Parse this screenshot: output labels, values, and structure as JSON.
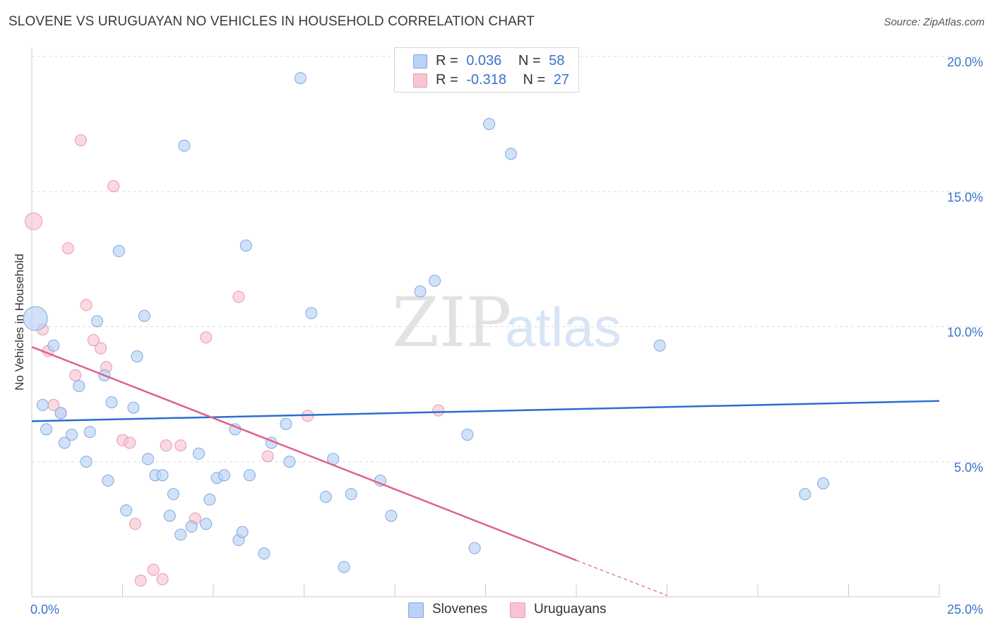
{
  "header": {
    "title": "SLOVENE VS URUGUAYAN NO VEHICLES IN HOUSEHOLD CORRELATION CHART",
    "source": "Source: ZipAtlas.com"
  },
  "legend": {
    "r_label": "R =",
    "n_label": "N =",
    "series": [
      {
        "name": "Slovenes",
        "r": "0.036",
        "n": "58"
      },
      {
        "name": "Uruguayans",
        "r": "-0.318",
        "n": "27"
      }
    ]
  },
  "watermark": {
    "zip": "ZIP",
    "atlas": "atlas"
  },
  "colors": {
    "blue_fill": "#b9d3f5",
    "blue_stroke": "#7fa8e0",
    "blue_line": "#2b6fcf",
    "pink_fill": "#f8c4d4",
    "pink_stroke": "#e898b1",
    "pink_line": "#e0608f",
    "axis_text": "#3a73c8",
    "grid": "#dddddd"
  },
  "chart_data": {
    "type": "scatter",
    "title": "SLOVENE VS URUGUAYAN NO VEHICLES IN HOUSEHOLD CORRELATION CHART",
    "xlabel": "",
    "ylabel": "No Vehicles in Household",
    "xlim": [
      0,
      25
    ],
    "ylim": [
      0,
      20
    ],
    "x_tick_labels": [
      "0.0%",
      "25.0%"
    ],
    "y_ticks": [
      5,
      10,
      15,
      20
    ],
    "y_tick_labels": [
      "5.0%",
      "10.0%",
      "15.0%",
      "20.0%"
    ],
    "grid": true,
    "series": [
      {
        "name": "Slovenes",
        "r": 0.036,
        "n": 58,
        "trend": {
          "x0": 0,
          "y0": 6.5,
          "x1": 25,
          "y1": 7.25
        },
        "points": [
          [
            0.1,
            10.3,
            3
          ],
          [
            0.3,
            7.1,
            1
          ],
          [
            0.4,
            6.2,
            1
          ],
          [
            0.6,
            9.3,
            1
          ],
          [
            0.8,
            6.8,
            1
          ],
          [
            0.9,
            5.7,
            1
          ],
          [
            1.1,
            6.0,
            1
          ],
          [
            1.3,
            7.8,
            1
          ],
          [
            1.5,
            5.0,
            1
          ],
          [
            1.6,
            6.1,
            1
          ],
          [
            1.8,
            10.2,
            1
          ],
          [
            2.0,
            8.2,
            1
          ],
          [
            2.1,
            4.3,
            1
          ],
          [
            2.2,
            7.2,
            1
          ],
          [
            2.4,
            12.8,
            1
          ],
          [
            2.6,
            3.2,
            1
          ],
          [
            2.8,
            7.0,
            1
          ],
          [
            2.9,
            8.9,
            1
          ],
          [
            3.1,
            10.4,
            1
          ],
          [
            3.2,
            5.1,
            1
          ],
          [
            3.4,
            4.5,
            1
          ],
          [
            3.6,
            4.5,
            1
          ],
          [
            3.8,
            3.0,
            1
          ],
          [
            3.9,
            3.8,
            1
          ],
          [
            4.1,
            2.3,
            1
          ],
          [
            4.2,
            16.7,
            1
          ],
          [
            4.4,
            2.6,
            1
          ],
          [
            4.6,
            5.3,
            1
          ],
          [
            4.8,
            2.7,
            1
          ],
          [
            4.9,
            3.6,
            1
          ],
          [
            5.1,
            4.4,
            1
          ],
          [
            5.3,
            4.5,
            1
          ],
          [
            5.6,
            6.2,
            1
          ],
          [
            5.7,
            2.1,
            1
          ],
          [
            5.8,
            2.4,
            1
          ],
          [
            5.9,
            13.0,
            1
          ],
          [
            6.0,
            4.5,
            1
          ],
          [
            6.4,
            1.6,
            1
          ],
          [
            6.6,
            5.7,
            1
          ],
          [
            7.0,
            6.4,
            1
          ],
          [
            7.1,
            5.0,
            1
          ],
          [
            7.4,
            19.2,
            1
          ],
          [
            7.7,
            10.5,
            1
          ],
          [
            8.1,
            3.7,
            1
          ],
          [
            8.3,
            5.1,
            1
          ],
          [
            8.6,
            1.1,
            1
          ],
          [
            8.8,
            3.8,
            1
          ],
          [
            9.6,
            4.3,
            1
          ],
          [
            9.9,
            3.0,
            1
          ],
          [
            10.7,
            11.3,
            1
          ],
          [
            11.1,
            11.7,
            1
          ],
          [
            12.0,
            6.0,
            1
          ],
          [
            12.2,
            1.8,
            1
          ],
          [
            12.6,
            17.5,
            1
          ],
          [
            13.2,
            16.4,
            1
          ],
          [
            17.3,
            9.3,
            1
          ],
          [
            21.3,
            3.8,
            1
          ],
          [
            21.8,
            4.2,
            1
          ]
        ]
      },
      {
        "name": "Uruguayans",
        "r": -0.318,
        "n": 27,
        "trend": {
          "x0": 0,
          "y0": 9.25,
          "x1": 15,
          "y1": 1.35
        },
        "trend_dashed": {
          "x0": 15,
          "y0": 1.35,
          "x1": 17.5,
          "y1": 0.05
        },
        "points": [
          [
            0.05,
            13.9,
            2
          ],
          [
            0.3,
            9.9,
            1
          ],
          [
            0.45,
            9.1,
            1
          ],
          [
            0.6,
            7.1,
            1
          ],
          [
            0.8,
            6.8,
            1
          ],
          [
            1.0,
            12.9,
            1
          ],
          [
            1.2,
            8.2,
            1
          ],
          [
            1.35,
            16.9,
            1
          ],
          [
            1.5,
            10.8,
            1
          ],
          [
            1.7,
            9.5,
            1
          ],
          [
            1.9,
            9.2,
            1
          ],
          [
            2.05,
            8.5,
            1
          ],
          [
            2.25,
            15.2,
            1
          ],
          [
            2.5,
            5.8,
            1
          ],
          [
            2.7,
            5.7,
            1
          ],
          [
            2.85,
            2.7,
            1
          ],
          [
            3.0,
            0.6,
            1
          ],
          [
            3.35,
            1.0,
            1
          ],
          [
            3.6,
            0.65,
            1
          ],
          [
            3.7,
            5.6,
            1
          ],
          [
            4.1,
            5.6,
            1
          ],
          [
            4.5,
            2.9,
            1
          ],
          [
            4.8,
            9.6,
            1
          ],
          [
            5.7,
            11.1,
            1
          ],
          [
            6.5,
            5.2,
            1
          ],
          [
            7.6,
            6.7,
            1
          ],
          [
            11.2,
            6.9,
            1
          ]
        ]
      }
    ]
  }
}
